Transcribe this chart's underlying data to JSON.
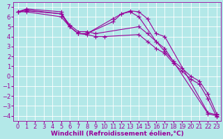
{
  "background_color": "#b3e8e8",
  "grid_color": "#ffffff",
  "line_color": "#990099",
  "marker": "+",
  "marker_size": 4,
  "xlabel": "Windchill (Refroidissement éolien,°C)",
  "xlabel_fontsize": 6.5,
  "tick_fontsize": 6,
  "xlim": [
    -0.5,
    23.5
  ],
  "ylim": [
    -4.5,
    7.5
  ],
  "yticks": [
    7,
    6,
    5,
    4,
    3,
    2,
    1,
    0,
    -1,
    -2,
    -3,
    -4
  ],
  "xticks": [
    0,
    1,
    2,
    3,
    4,
    5,
    6,
    7,
    8,
    9,
    10,
    11,
    12,
    13,
    14,
    15,
    16,
    17,
    18,
    19,
    20,
    21,
    22,
    23
  ],
  "lines": [
    {
      "x": [
        0,
        1,
        5,
        6,
        7,
        8,
        11,
        12,
        13,
        14,
        15,
        16,
        17,
        22,
        23
      ],
      "y": [
        6.5,
        6.8,
        6.5,
        5.0,
        4.3,
        4.3,
        5.8,
        6.3,
        6.6,
        6.5,
        5.8,
        4.3,
        4.0,
        -3.7,
        -3.9
      ]
    },
    {
      "x": [
        0,
        1,
        5,
        6,
        7,
        8,
        11,
        12,
        13,
        14,
        16,
        17,
        22,
        23
      ],
      "y": [
        6.5,
        6.7,
        6.3,
        5.0,
        4.3,
        4.3,
        5.5,
        6.3,
        6.5,
        6.0,
        3.5,
        2.8,
        -3.8,
        -4.0
      ]
    },
    {
      "x": [
        0,
        1,
        5,
        6,
        7,
        8,
        9,
        14,
        15,
        16,
        17,
        18,
        19,
        20,
        21,
        22,
        23
      ],
      "y": [
        6.5,
        6.6,
        6.3,
        5.2,
        4.5,
        4.5,
        4.3,
        5.0,
        4.3,
        3.5,
        2.5,
        1.5,
        0.8,
        0.0,
        -0.5,
        -1.8,
        -3.8
      ]
    },
    {
      "x": [
        0,
        1,
        5,
        6,
        7,
        8,
        9,
        10,
        14,
        15,
        16,
        17,
        18,
        19,
        20,
        21,
        22,
        23
      ],
      "y": [
        6.5,
        6.5,
        6.0,
        5.0,
        4.3,
        4.2,
        4.0,
        4.0,
        4.2,
        3.5,
        2.8,
        2.3,
        1.3,
        0.5,
        -0.3,
        -0.8,
        -2.3,
        -4.1
      ]
    }
  ]
}
